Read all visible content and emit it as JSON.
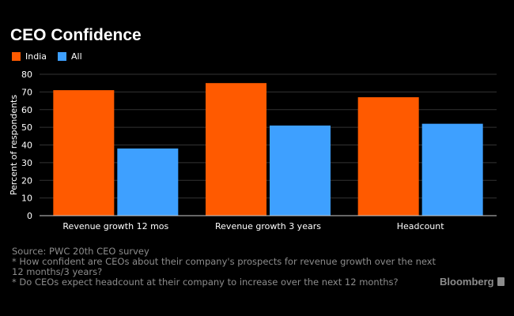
{
  "chart_data": {
    "type": "bar",
    "title": "CEO Confidence",
    "categories": [
      "Revenue growth 12 mos",
      "Revenue growth 3 years",
      "Headcount"
    ],
    "series": [
      {
        "name": "India",
        "values": [
          71,
          75,
          67
        ],
        "color": "#ff5a00"
      },
      {
        "name": "All",
        "values": [
          38,
          51,
          52
        ],
        "color": "#3ea0ff"
      }
    ],
    "xlabel": "",
    "ylabel": "Percent of respondents",
    "ylim": [
      0,
      80
    ],
    "yticks": [
      0,
      10,
      20,
      30,
      40,
      50,
      60,
      70,
      80
    ],
    "ytick_labels": [
      "0",
      "10",
      "20",
      "30",
      "40",
      "50",
      "60",
      "70",
      "80"
    ],
    "grid": true,
    "legend_position": "top-left"
  },
  "footer": {
    "source": "Source: PWC 20th CEO survey",
    "note1": "* How confident are CEOs about their company's prospects for revenue growth over the next 12 months/3 years?",
    "note2": "* Do CEOs expect headcount at their company to increase over the next 12 months?"
  },
  "brand": "Bloomberg",
  "colors": {
    "background": "#000000",
    "grid": "#333333",
    "axis": "#cccccc",
    "footer_text": "#8c8c8c"
  }
}
